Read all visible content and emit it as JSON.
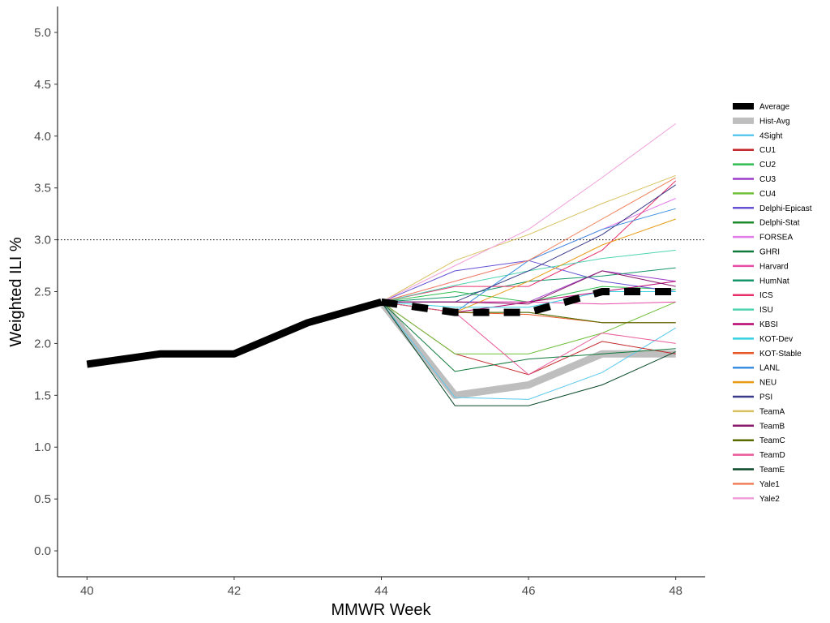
{
  "chart_data": {
    "type": "line",
    "title": "",
    "xlabel": "MMWR Week",
    "ylabel": "Weighted ILI %",
    "xlim": [
      39.6,
      48.4
    ],
    "ylim": [
      -0.25,
      5.25
    ],
    "xticks": [
      "40",
      "42",
      "44",
      "46",
      "48"
    ],
    "yticks": [
      "0.0",
      "0.5",
      "1.0",
      "1.5",
      "2.0",
      "2.5",
      "3.0",
      "3.5",
      "4.0",
      "4.5",
      "5.0"
    ],
    "reference_line": {
      "y": 3.0,
      "style": "dotted"
    },
    "grid": false,
    "legend_position": "right",
    "observed": {
      "x": [
        40,
        41,
        42,
        43,
        44
      ],
      "y": [
        1.8,
        1.9,
        1.9,
        2.2,
        2.4
      ]
    },
    "series": [
      {
        "name": "Average",
        "color": "#000000",
        "style": "dashed-thick",
        "x": [
          44,
          45,
          46,
          47,
          48
        ],
        "y": [
          2.4,
          2.3,
          2.3,
          2.5,
          2.5
        ]
      },
      {
        "name": "Hist-Avg",
        "color": "#bebebe",
        "style": "solid-thick",
        "x": [
          44,
          45,
          46,
          47,
          48
        ],
        "y": [
          2.4,
          1.5,
          1.6,
          1.9,
          1.9
        ]
      },
      {
        "name": "4Sight",
        "color": "#5bc8ec",
        "x": [
          44,
          45,
          46,
          47,
          48
        ],
        "y": [
          2.4,
          1.48,
          1.46,
          1.72,
          2.15
        ]
      },
      {
        "name": "CU1",
        "color": "#c3272b",
        "x": [
          44,
          45,
          46,
          47,
          48
        ],
        "y": [
          2.4,
          1.9,
          1.7,
          2.02,
          1.9
        ]
      },
      {
        "name": "CU2",
        "color": "#2ebd4f",
        "x": [
          44,
          45,
          46,
          47,
          48
        ],
        "y": [
          2.4,
          2.5,
          2.4,
          2.55,
          2.52
        ]
      },
      {
        "name": "CU3",
        "color": "#9c3cc8",
        "x": [
          44,
          45,
          46,
          47,
          48
        ],
        "y": [
          2.4,
          2.4,
          2.4,
          2.7,
          2.6
        ]
      },
      {
        "name": "CU4",
        "color": "#6fbf3a",
        "x": [
          44,
          45,
          46,
          47,
          48
        ],
        "y": [
          2.4,
          1.9,
          1.9,
          2.1,
          2.4
        ]
      },
      {
        "name": "Delphi-Epicast",
        "color": "#6452d4",
        "x": [
          44,
          45,
          46,
          47,
          48
        ],
        "y": [
          2.4,
          2.7,
          2.8,
          2.6,
          2.5
        ]
      },
      {
        "name": "Delphi-Stat",
        "color": "#1a8a2a",
        "x": [
          44,
          45,
          46,
          47,
          48
        ],
        "y": [
          2.4,
          2.3,
          2.3,
          2.2,
          2.2
        ]
      },
      {
        "name": "FORSEA",
        "color": "#e07be8",
        "x": [
          44,
          45,
          46,
          47,
          48
        ],
        "y": [
          2.4,
          2.6,
          2.8,
          3.1,
          3.4
        ]
      },
      {
        "name": "GHRI",
        "color": "#0f7a3a",
        "x": [
          44,
          45,
          46,
          47,
          48
        ],
        "y": [
          2.4,
          1.73,
          1.85,
          1.9,
          1.95
        ]
      },
      {
        "name": "Harvard",
        "color": "#e84aa8",
        "x": [
          44,
          45,
          46,
          47,
          48
        ],
        "y": [
          2.4,
          2.4,
          2.4,
          2.38,
          2.4
        ]
      },
      {
        "name": "HumNat",
        "color": "#14966a",
        "x": [
          44,
          45,
          46,
          47,
          48
        ],
        "y": [
          2.4,
          2.45,
          2.6,
          2.65,
          2.73
        ]
      },
      {
        "name": "ICS",
        "color": "#e8306a",
        "x": [
          44,
          45,
          46,
          47,
          48
        ],
        "y": [
          2.4,
          2.55,
          2.55,
          2.9,
          3.57
        ]
      },
      {
        "name": "ISU",
        "color": "#4fd4b0",
        "x": [
          44,
          45,
          46,
          47,
          48
        ],
        "y": [
          2.4,
          2.56,
          2.7,
          2.82,
          2.9
        ]
      },
      {
        "name": "KBSI",
        "color": "#b8006e",
        "x": [
          44,
          45,
          46,
          47,
          48
        ],
        "y": [
          2.4,
          2.3,
          2.4,
          2.5,
          2.6
        ]
      },
      {
        "name": "KOT-Dev",
        "color": "#36d0e0",
        "x": [
          44,
          45,
          46,
          47,
          48
        ],
        "y": [
          2.4,
          2.35,
          2.35,
          2.5,
          2.5
        ]
      },
      {
        "name": "KOT-Stable",
        "color": "#e85a2a",
        "x": [
          44,
          45,
          46,
          47,
          48
        ],
        "y": [
          2.4,
          2.3,
          2.28,
          2.2,
          2.2
        ]
      },
      {
        "name": "LANL",
        "color": "#3c8ee0",
        "x": [
          44,
          45,
          46,
          47,
          48
        ],
        "y": [
          2.4,
          2.3,
          2.8,
          3.1,
          3.3
        ]
      },
      {
        "name": "NEU",
        "color": "#e89a14",
        "x": [
          44,
          45,
          46,
          47,
          48
        ],
        "y": [
          2.4,
          2.3,
          2.6,
          2.95,
          3.2
        ]
      },
      {
        "name": "PSI",
        "color": "#3a3a8a",
        "x": [
          44,
          45,
          46,
          47,
          48
        ],
        "y": [
          2.4,
          2.4,
          2.7,
          3.05,
          3.53
        ]
      },
      {
        "name": "TeamA",
        "color": "#d8c060",
        "x": [
          44,
          45,
          46,
          47,
          48
        ],
        "y": [
          2.4,
          2.8,
          3.05,
          3.35,
          3.62
        ]
      },
      {
        "name": "TeamB",
        "color": "#8a1a6a",
        "x": [
          44,
          45,
          46,
          47,
          48
        ],
        "y": [
          2.4,
          2.4,
          2.38,
          2.7,
          2.55
        ]
      },
      {
        "name": "TeamC",
        "color": "#5a6a00",
        "x": [
          44,
          45,
          46,
          47,
          48
        ],
        "y": [
          2.4,
          2.3,
          2.3,
          2.2,
          2.2
        ]
      },
      {
        "name": "TeamD",
        "color": "#e85a9a",
        "x": [
          44,
          45,
          46,
          47,
          48
        ],
        "y": [
          2.4,
          2.3,
          1.7,
          2.1,
          2.0
        ]
      },
      {
        "name": "TeamE",
        "color": "#0a4a2a",
        "x": [
          44,
          45,
          46,
          47,
          48
        ],
        "y": [
          2.4,
          1.4,
          1.4,
          1.6,
          1.92
        ]
      },
      {
        "name": "Yale1",
        "color": "#f0805a",
        "x": [
          44,
          45,
          46,
          47,
          48
        ],
        "y": [
          2.4,
          2.6,
          2.8,
          3.2,
          3.6
        ]
      },
      {
        "name": "Yale2",
        "color": "#f0a0d8",
        "x": [
          44,
          45,
          46,
          47,
          48
        ],
        "y": [
          2.4,
          2.75,
          3.1,
          3.6,
          4.12
        ]
      }
    ]
  }
}
